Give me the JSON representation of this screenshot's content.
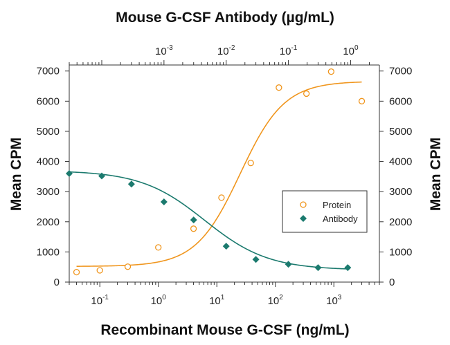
{
  "chart_data": {
    "type": "scatter",
    "top_axis": {
      "label": "Mouse G-CSF Antibody (µg/mL)",
      "scale": "log",
      "range": [
        3e-05,
        2.9
      ],
      "tick_labels": [
        {
          "value": 0.001,
          "base": "10",
          "exp": "-3"
        },
        {
          "value": 0.01,
          "base": "10",
          "exp": "-2"
        },
        {
          "value": 0.1,
          "base": "10",
          "exp": "-1"
        },
        {
          "value": 1,
          "base": "10",
          "exp": "0"
        }
      ]
    },
    "bottom_axis": {
      "label": "Recombinant Mouse G-CSF (ng/mL)",
      "scale": "log",
      "range": [
        0.03,
        6000
      ],
      "tick_labels": [
        {
          "value": 0.1,
          "base": "10",
          "exp": "-1"
        },
        {
          "value": 1,
          "base": "10",
          "exp": "0"
        },
        {
          "value": 10,
          "base": "10",
          "exp": "1"
        },
        {
          "value": 100,
          "base": "10",
          "exp": "2"
        },
        {
          "value": 1000,
          "base": "10",
          "exp": "3"
        }
      ]
    },
    "left_axis": {
      "label": "Mean CPM",
      "range": [
        0,
        7200
      ],
      "tick_labels": [
        "0",
        "1000",
        "2000",
        "3000",
        "4000",
        "5000",
        "6000",
        "7000"
      ]
    },
    "right_axis": {
      "label": "Mean CPM",
      "range": [
        0,
        7200
      ],
      "tick_labels": [
        "0",
        "1000",
        "2000",
        "3000",
        "4000",
        "5000",
        "6000",
        "7000"
      ]
    },
    "legend": {
      "position": "right",
      "entries": [
        "Protein",
        "Antibody"
      ]
    },
    "colors": {
      "protein": "#f0961e",
      "antibody": "#1b7a6e",
      "axis": "#333333"
    },
    "series": [
      {
        "name": "Protein",
        "axis": "bottom",
        "marker": "open-circle",
        "x": [
          0.04,
          0.1,
          0.3,
          1,
          4,
          12,
          38,
          115,
          340,
          900,
          3000
        ],
        "y": [
          330,
          390,
          510,
          1150,
          1770,
          2800,
          3950,
          6450,
          6250,
          6980,
          6000
        ]
      },
      {
        "name": "Antibody",
        "axis": "top",
        "marker": "filled-diamond",
        "x": [
          3e-05,
          0.0001,
          0.0003,
          0.001,
          0.003,
          0.01,
          0.03,
          0.1,
          0.3,
          0.9
        ],
        "y": [
          3600,
          3520,
          3250,
          2660,
          2060,
          1190,
          750,
          590,
          480,
          480
        ]
      }
    ],
    "fit_curves": [
      {
        "series": "Protein",
        "bottom": 520,
        "top": 6660,
        "ec50": 25,
        "hill": 1.15
      },
      {
        "series": "Antibody",
        "bottom": 400,
        "top": 3700,
        "ic50": 0.0045,
        "hill": 0.85
      }
    ]
  }
}
